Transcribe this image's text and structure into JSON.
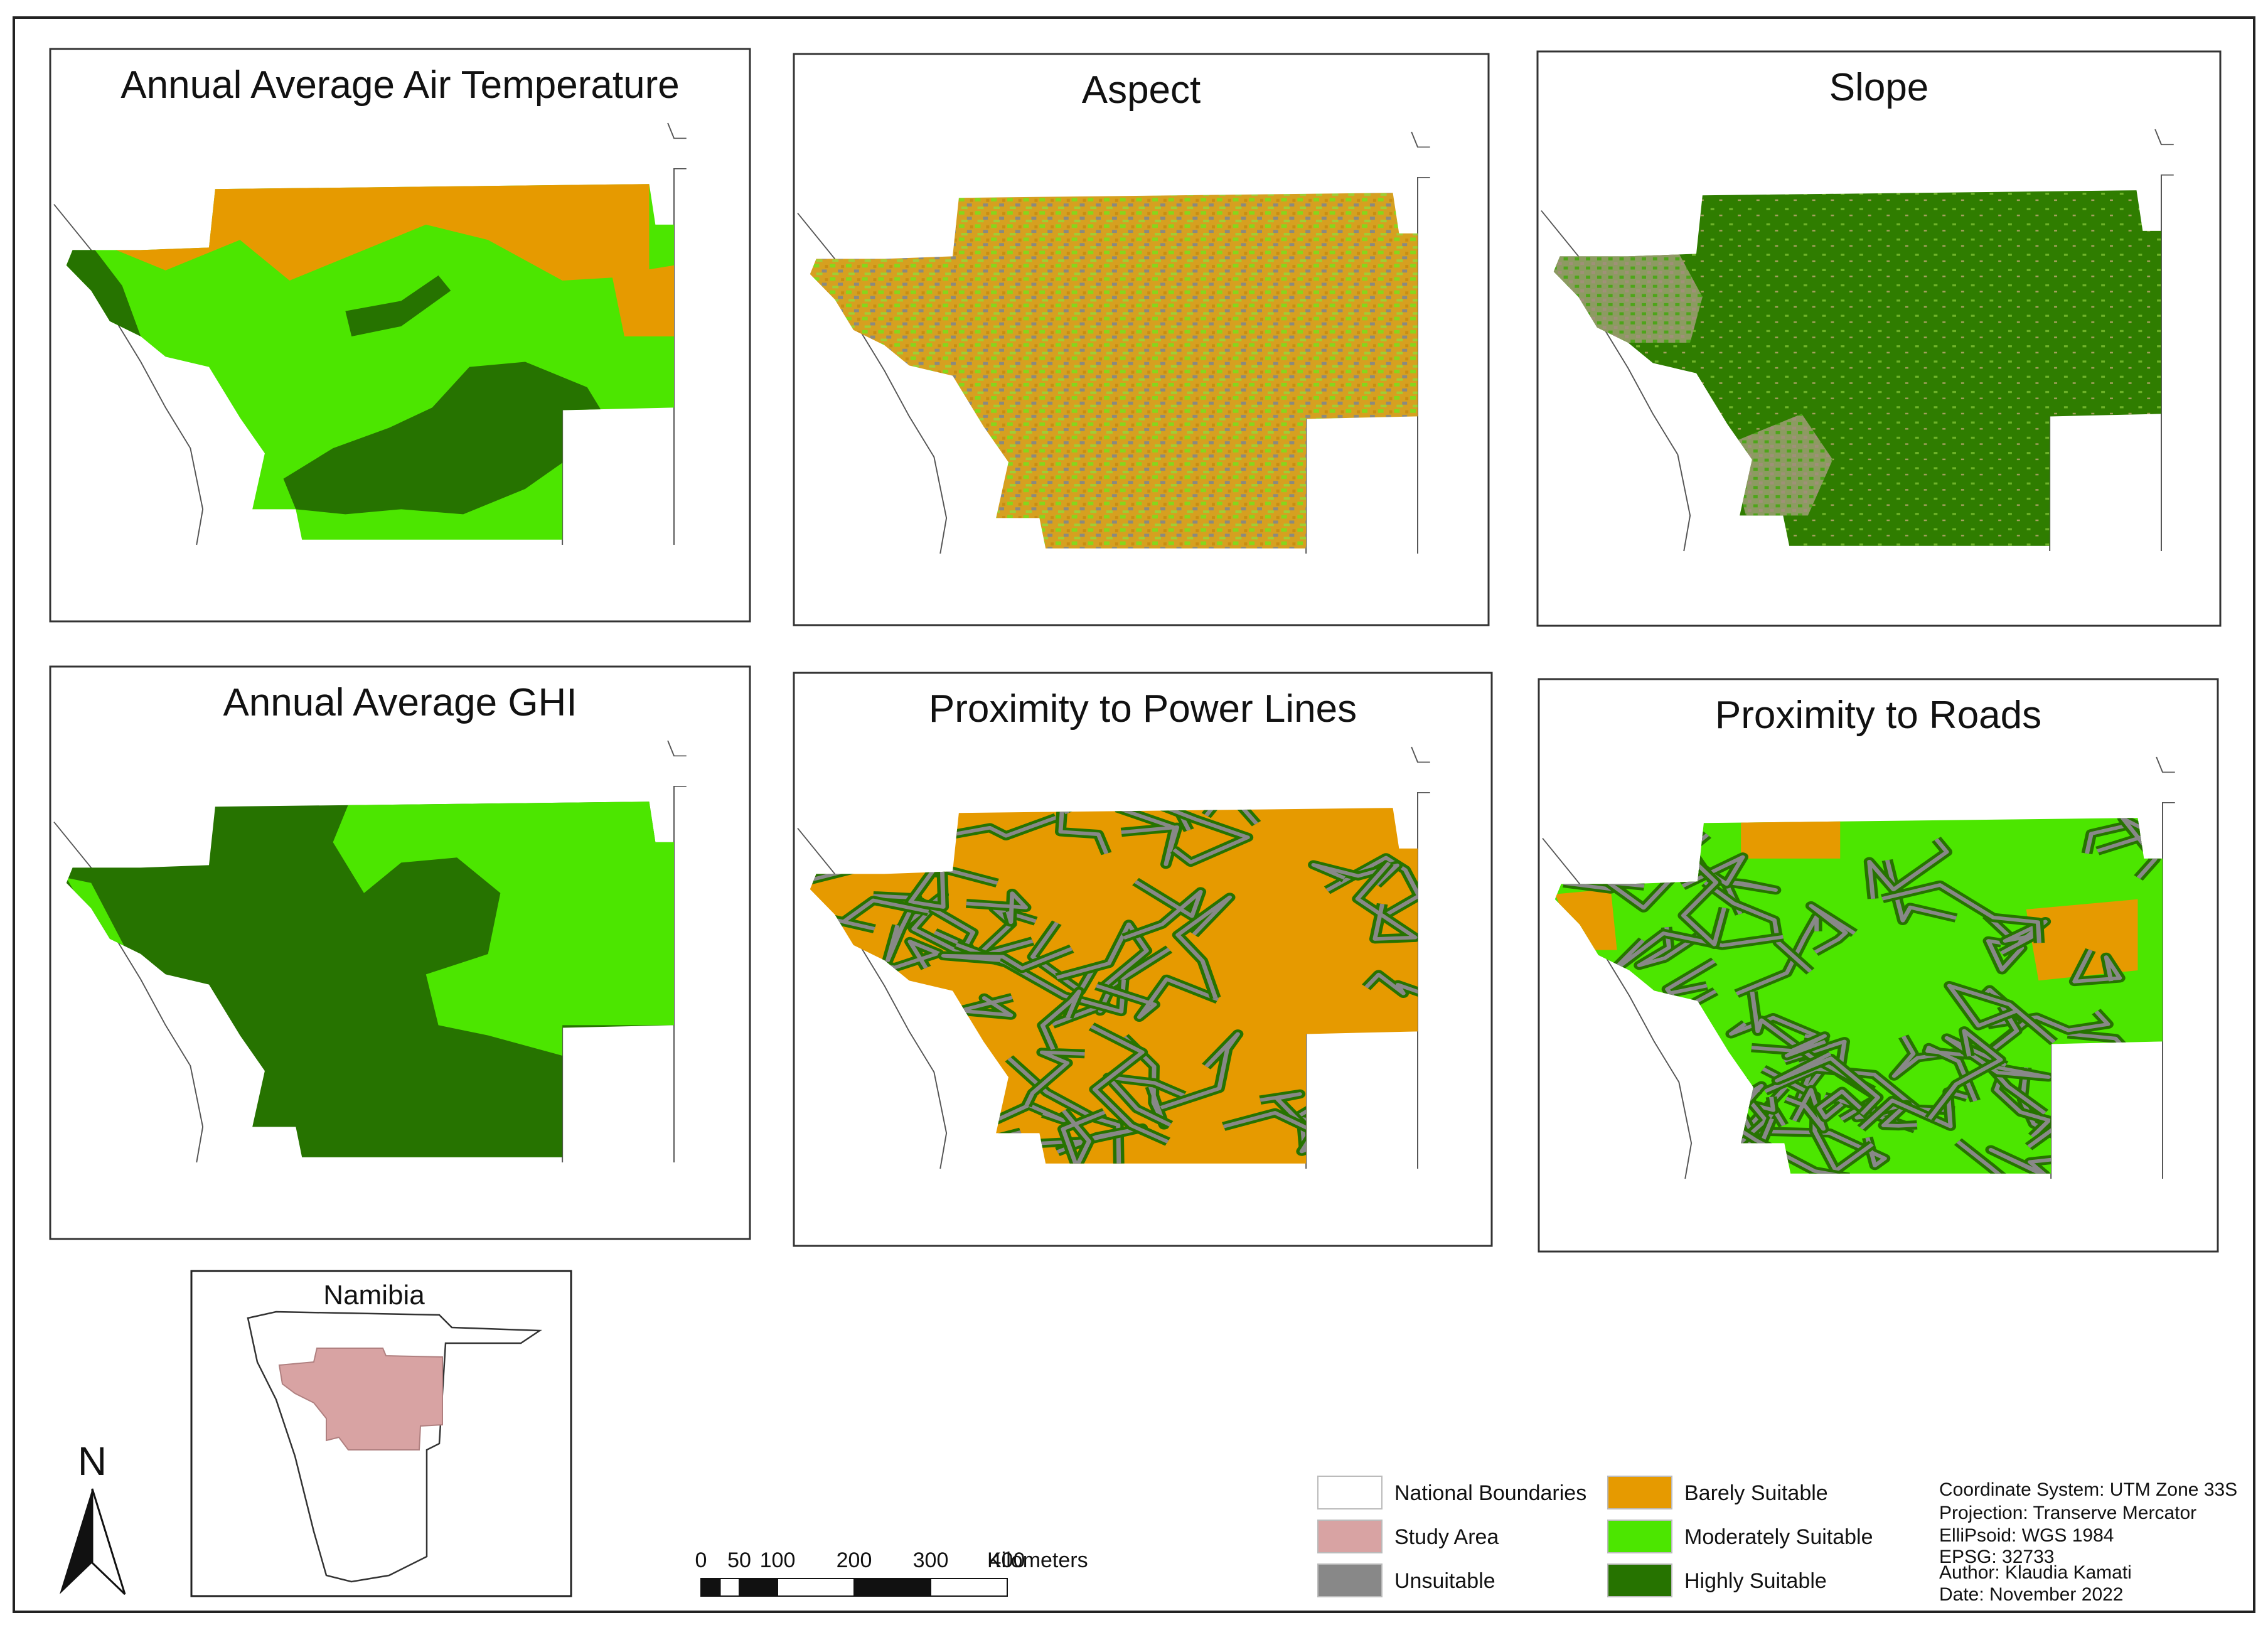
{
  "colors": {
    "unsuitable": "#888888",
    "barely": "#e69a00",
    "moderately": "#4ce600",
    "highly": "#267300",
    "study_area": "#d8a3a3",
    "boundary": "#ffffff"
  },
  "panels": [
    {
      "title": "Annual Average Air Temperature",
      "pattern": "temperature"
    },
    {
      "title": "Aspect",
      "pattern": "aspect"
    },
    {
      "title": "Slope",
      "pattern": "slope"
    },
    {
      "title": "Annual Average GHI",
      "pattern": "ghi"
    },
    {
      "title": "Proximity to Power Lines",
      "pattern": "power"
    },
    {
      "title": "Proximity to Roads",
      "pattern": "roads"
    }
  ],
  "inset": {
    "title": "Namibia"
  },
  "north_arrow": {
    "label": "N",
    "icon": "north-arrow-icon"
  },
  "scale_bar": {
    "ticks": [
      "0",
      "50",
      "100",
      "200",
      "300",
      "400"
    ],
    "unit": "Kilometers",
    "tick_km": [
      0,
      50,
      100,
      200,
      300,
      400
    ]
  },
  "legend": {
    "items": [
      {
        "label": "National Boundaries",
        "color": "#ffffff"
      },
      {
        "label": "Study Area",
        "color": "#d8a3a3"
      },
      {
        "label": "Unsuitable",
        "color": "#888888"
      },
      {
        "label": "Barely Suitable",
        "color": "#e69a00"
      },
      {
        "label": "Moderately Suitable",
        "color": "#4ce600"
      },
      {
        "label": "Highly Suitable",
        "color": "#267300"
      }
    ]
  },
  "metadata": [
    "Coordinate System: UTM Zone 33S",
    "Projection: Transerve Mercator",
    "ElliPsoid: WGS 1984",
    "EPSG: 32733",
    "Author: Klaudia Kamati",
    "Date: November 2022"
  ]
}
